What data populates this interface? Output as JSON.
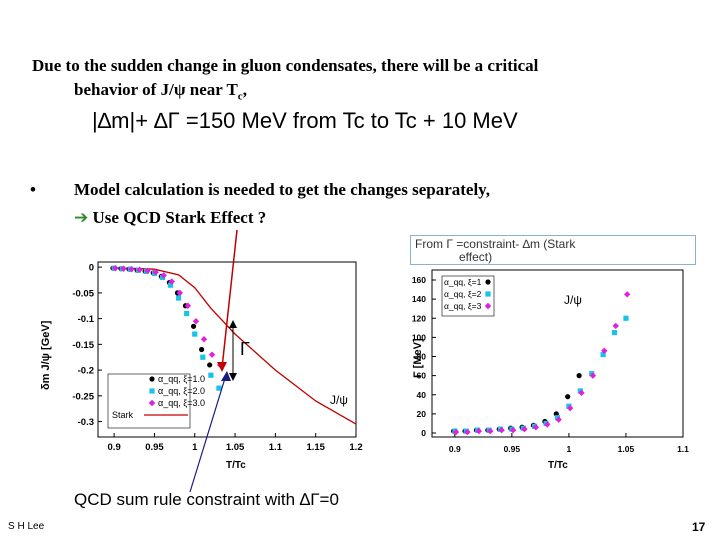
{
  "slide": {
    "line1": "Due to the sudden change in gluon condensates, there will be a critical",
    "line2_a": "behavior of J/",
    "line2_psi": "ψ",
    "line2_b": " near T",
    "line2_sub": "c",
    "line2_c": ",",
    "equation": "|∆m|+ ∆Γ =150  MeV  from  Tc to Tc + 10 MeV",
    "bullet": "•",
    "line3": "Model calculation is needed to get the changes separately,",
    "line4_arrow": "➔",
    "line4": " Use QCD Stark Effect ?",
    "box_line1": "From Γ =constraint-  ∆m (Stark",
    "box_line2": "effect)",
    "bottom_caption": "QCD sum rule constraint with ∆Γ=0",
    "author": "S H Lee",
    "page_number": "17",
    "gamma_label": "Γ",
    "colors": {
      "black_series": "#000000",
      "cyan_series": "#19c3e8",
      "magenta_series": "#e020e0",
      "stark_line": "#c00000",
      "arrow": "#2e8b2e"
    }
  },
  "chart_data": [
    {
      "type": "scatter",
      "title": "",
      "xlabel": "T/Tc",
      "ylabel": "δm J/ψ [GeV]",
      "xlim": [
        0.88,
        1.2
      ],
      "ylim": [
        -0.33,
        0.01
      ],
      "xticks": [
        "0.9",
        "0.95",
        "1",
        "1.05",
        "1.1",
        "1.15",
        "1.2"
      ],
      "yticks": [
        "0",
        "-0.05",
        "-0.1",
        "-0.15",
        "-0.2",
        "-0.25",
        "-0.3"
      ],
      "annotation": "J/ψ",
      "legend": [
        "α_qq, ξ=1.0",
        "α_qq, ξ=2.0",
        "α_qq, ξ=3.0",
        "Stark"
      ],
      "series": [
        {
          "name": "ξ=1.0",
          "x": [
            0.9,
            0.91,
            0.92,
            0.93,
            0.94,
            0.95,
            0.96,
            0.97,
            0.98,
            0.99,
            1.0,
            1.01,
            1.02
          ],
          "y": [
            -0.002,
            -0.003,
            -0.004,
            -0.006,
            -0.008,
            -0.011,
            -0.018,
            -0.03,
            -0.05,
            -0.075,
            -0.115,
            -0.16,
            -0.19
          ]
        },
        {
          "name": "ξ=2.0",
          "x": [
            0.9,
            0.91,
            0.92,
            0.93,
            0.94,
            0.95,
            0.96,
            0.97,
            0.98,
            0.99,
            1.0,
            1.01,
            1.02,
            1.03
          ],
          "y": [
            -0.002,
            -0.003,
            -0.004,
            -0.006,
            -0.008,
            -0.012,
            -0.02,
            -0.035,
            -0.06,
            -0.09,
            -0.13,
            -0.175,
            -0.21,
            -0.235
          ]
        },
        {
          "name": "ξ=3.0",
          "x": [
            0.9,
            0.91,
            0.92,
            0.93,
            0.94,
            0.95,
            0.96,
            0.97,
            0.98,
            0.99,
            1.0,
            1.01,
            1.02,
            1.03
          ],
          "y": [
            -0.002,
            -0.003,
            -0.004,
            -0.005,
            -0.007,
            -0.01,
            -0.016,
            -0.028,
            -0.05,
            -0.075,
            -0.105,
            -0.14,
            -0.17,
            -0.19
          ]
        },
        {
          "name": "Stark",
          "x": [
            0.9,
            0.95,
            0.98,
            1.0,
            1.02,
            1.05,
            1.1,
            1.15,
            1.2
          ],
          "y": [
            -0.001,
            -0.004,
            -0.015,
            -0.04,
            -0.08,
            -0.13,
            -0.2,
            -0.26,
            -0.305
          ]
        }
      ]
    },
    {
      "type": "scatter",
      "title": "",
      "xlabel": "T/Tc",
      "ylabel": "Γ [MeV]",
      "xlim": [
        0.88,
        1.1
      ],
      "ylim": [
        0,
        160
      ],
      "xticks": [
        "0.9",
        "0.95",
        "1",
        "1.05",
        "1.1"
      ],
      "yticks": [
        "160",
        "140",
        "120",
        "100",
        "80",
        "60",
        "40",
        "20",
        "0"
      ],
      "annotation": "J/ψ",
      "legend": [
        "α_qq, ξ=1",
        "α_qq, ξ=2",
        "α_qq, ξ=3"
      ],
      "series": [
        {
          "name": "ξ=1",
          "x": [
            0.9,
            0.91,
            0.92,
            0.93,
            0.94,
            0.95,
            0.96,
            0.97,
            0.98,
            0.99,
            1.0,
            1.01
          ],
          "y": [
            2,
            2,
            3,
            3,
            4,
            5,
            6,
            8,
            12,
            20,
            38,
            60
          ]
        },
        {
          "name": "ξ=2",
          "x": [
            0.9,
            0.91,
            0.92,
            0.93,
            0.94,
            0.95,
            0.96,
            0.97,
            0.98,
            0.99,
            1.0,
            1.01,
            1.02,
            1.03,
            1.04,
            1.05
          ],
          "y": [
            2,
            2,
            3,
            3,
            4,
            4,
            5,
            7,
            10,
            16,
            28,
            44,
            62,
            82,
            105,
            120
          ]
        },
        {
          "name": "ξ=3",
          "x": [
            0.9,
            0.91,
            0.92,
            0.93,
            0.94,
            0.95,
            0.96,
            0.97,
            0.98,
            0.99,
            1.0,
            1.01,
            1.02,
            1.03,
            1.04,
            1.05
          ],
          "y": [
            1,
            1,
            2,
            2,
            3,
            3,
            4,
            6,
            9,
            14,
            26,
            42,
            60,
            86,
            112,
            145
          ]
        }
      ]
    }
  ]
}
